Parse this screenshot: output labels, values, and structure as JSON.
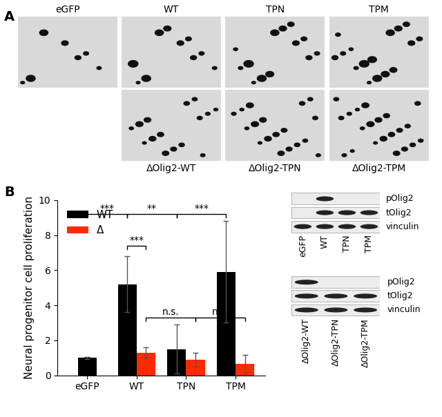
{
  "panel_labels": [
    "A",
    "B"
  ],
  "images": {
    "top_row": [
      "eGFP",
      "WT",
      "TPN",
      "TPM"
    ],
    "bottom_row": [
      null,
      "ΔOlig2-WT",
      "ΔOlig2-TPN",
      "ΔOlig2-TPM"
    ]
  },
  "chart_data": {
    "type": "bar",
    "categories": [
      "eGFP",
      "WT",
      "TPN",
      "TPM"
    ],
    "y_label": "Neural progenitor cell proliferation",
    "ylim": [
      0,
      10
    ],
    "yticks": [
      0,
      2,
      4,
      6,
      8,
      10
    ],
    "legend": "upper left",
    "series": [
      {
        "name": "WT",
        "color": "#000000",
        "values": [
          1.0,
          5.2,
          1.5,
          5.9
        ],
        "errors": [
          0.05,
          1.6,
          1.4,
          2.9
        ]
      },
      {
        "name": "Δ",
        "color": "#ff2a00",
        "values": [
          null,
          1.3,
          0.9,
          0.65
        ],
        "errors": [
          null,
          0.3,
          0.4,
          0.5
        ]
      }
    ],
    "annotations": [
      {
        "text": "***",
        "from": [
          "eGFP",
          "WT"
        ],
        "to": [
          "WT",
          "WT"
        ]
      },
      {
        "text": "**",
        "from": [
          "WT",
          "WT"
        ],
        "to": [
          "TPN",
          "WT"
        ]
      },
      {
        "text": "***",
        "from": [
          "TPN",
          "WT"
        ],
        "to": [
          "TPM",
          "WT"
        ]
      },
      {
        "text": "***",
        "from": [
          "WT",
          "WT"
        ],
        "to": [
          "WT",
          "Δ"
        ]
      },
      {
        "text": "n.s.",
        "from": [
          "WT",
          "Δ"
        ],
        "to": [
          "TPN",
          "Δ"
        ]
      },
      {
        "text": "n.s.",
        "from": [
          "TPN",
          "Δ"
        ],
        "to": [
          "TPM",
          "Δ"
        ]
      }
    ]
  },
  "blots": [
    {
      "rows": [
        "pOlig2",
        "tOlig2",
        "vinculin"
      ],
      "lanes": [
        "eGFP",
        "WT",
        "TPN",
        "TPM"
      ],
      "bands": [
        [
          false,
          true,
          false,
          false
        ],
        [
          false,
          true,
          true,
          true
        ],
        [
          true,
          true,
          true,
          true
        ]
      ]
    },
    {
      "rows": [
        "pOlig2",
        "tOlig2",
        "vinculin"
      ],
      "lanes": [
        "ΔOlig2-WT",
        "ΔOlig2-TPN",
        "ΔOlig2-TPM"
      ],
      "bands": [
        [
          true,
          false,
          false
        ],
        [
          true,
          true,
          true
        ],
        [
          true,
          true,
          true
        ]
      ]
    }
  ]
}
